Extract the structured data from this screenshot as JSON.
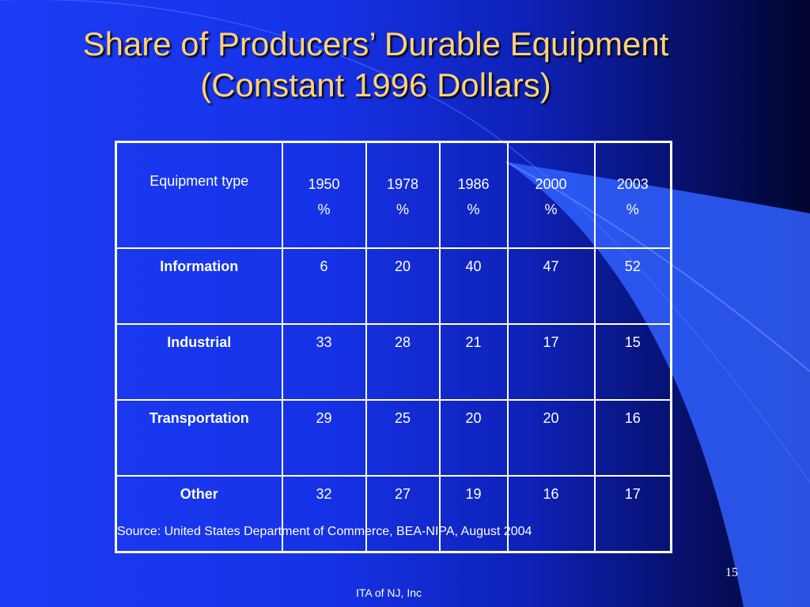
{
  "slide": {
    "title_line1": "Share of Producers’ Durable Equipment",
    "title_line2": "(Constant 1996 Dollars)",
    "source": "Source: United States Department of Commerce, BEA-NIPA, August 2004",
    "footer": "ITA of NJ, Inc",
    "slide_number": "15"
  },
  "table": {
    "corner_header": "Equipment type",
    "years": [
      {
        "year": "1950",
        "unit": "%"
      },
      {
        "year": "1978",
        "unit": "%"
      },
      {
        "year": "1986",
        "unit": "%"
      },
      {
        "year": "2000",
        "unit": "%"
      },
      {
        "year": "2003",
        "unit": "%"
      }
    ],
    "rows": [
      {
        "label": "Information",
        "values": [
          "6",
          "20",
          "40",
          "47",
          "52"
        ]
      },
      {
        "label": "Industrial",
        "values": [
          "33",
          "28",
          "21",
          "17",
          "15"
        ]
      },
      {
        "label": "Transportation",
        "values": [
          "29",
          "25",
          "20",
          "20",
          "16"
        ]
      },
      {
        "label": "Other",
        "values": [
          "32",
          "27",
          "19",
          "16",
          "17"
        ]
      }
    ]
  }
}
